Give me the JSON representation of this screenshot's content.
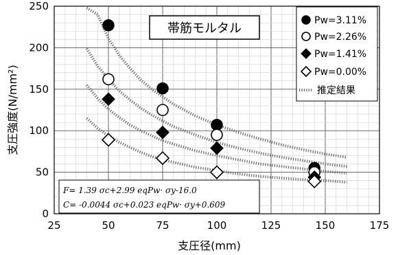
{
  "chart_data": {
    "type": "scatter",
    "title": "帯筋モルタル",
    "xlabel": "支圧径(mm)",
    "ylabel": "支圧強度(N/mm²)",
    "xlim": [
      25,
      175
    ],
    "ylim": [
      0,
      250
    ],
    "xticks": [
      "25",
      "50",
      "75",
      "100",
      "125",
      "150",
      "175"
    ],
    "yticks": [
      "0",
      "50",
      "100",
      "150",
      "200",
      "250"
    ],
    "grid": true,
    "legend_position": "top-right",
    "series": [
      {
        "name": "Pw=3.11%",
        "marker": "filled-circle",
        "x": [
          50,
          75,
          100,
          145
        ],
        "y": [
          227,
          151,
          107,
          55
        ]
      },
      {
        "name": "Pw=2.26%",
        "marker": "open-circle",
        "x": [
          50,
          75,
          100,
          145
        ],
        "y": [
          162,
          125,
          95,
          50
        ]
      },
      {
        "name": "Pw=1.41%",
        "marker": "filled-diamond",
        "x": [
          50,
          75,
          100,
          145
        ],
        "y": [
          138,
          98,
          79,
          44
        ]
      },
      {
        "name": "Pw=0.00%",
        "marker": "open-diamond",
        "x": [
          50,
          75,
          100,
          145
        ],
        "y": [
          89,
          67,
          50,
          39
        ]
      }
    ],
    "estimate": {
      "name": "推定結果",
      "curves": [
        {
          "x": [
            40,
            45,
            50,
            55,
            60,
            65,
            70,
            75,
            80,
            90,
            100,
            110,
            120,
            130,
            140,
            150,
            160
          ],
          "y": [
            248,
            240,
            211,
            191,
            175,
            161,
            150,
            141,
            132,
            118,
            107,
            98,
            90,
            83,
            77,
            72,
            68
          ]
        },
        {
          "x": [
            40,
            45,
            50,
            55,
            60,
            65,
            70,
            75,
            80,
            90,
            100,
            110,
            120,
            130,
            140,
            150,
            160
          ],
          "y": [
            199,
            178,
            162,
            148,
            137,
            127,
            119,
            112,
            105,
            95,
            86,
            79,
            73,
            68,
            64,
            60,
            57
          ]
        },
        {
          "x": [
            40,
            45,
            50,
            55,
            60,
            65,
            70,
            75,
            80,
            90,
            100,
            110,
            120,
            130,
            140,
            150,
            160
          ],
          "y": [
            155,
            139,
            126,
            116,
            107,
            100,
            94,
            88,
            84,
            76,
            70,
            65,
            60,
            57,
            54,
            51,
            49
          ]
        },
        {
          "x": [
            40,
            45,
            50,
            55,
            60,
            65,
            70,
            75,
            80,
            90,
            100,
            110,
            120,
            130,
            140,
            150,
            160
          ],
          "y": [
            115,
            103,
            94,
            86,
            80,
            74,
            69,
            65,
            62,
            56,
            52,
            48,
            45,
            43,
            41,
            40,
            38
          ]
        }
      ]
    },
    "annotations": [
      "F= 1.39 σc+2.99 eqPw· σy-16.0",
      "C= -0.0044 σc+0.023 eqPw· σy+0.609"
    ]
  }
}
